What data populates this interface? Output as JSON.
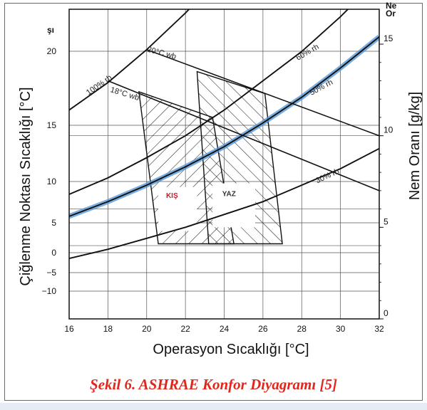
{
  "caption": "Şekil 6. ASHRAE Konfor Diyagramı [5]",
  "colors": {
    "curve_highlight": "#4f93d6",
    "zone_label": "#c0202a",
    "caption": "#e1261c"
  },
  "chart_data": {
    "type": "psychrometric",
    "xlabel": "Operasyon Sıcaklığı [°C]",
    "ylabel_left": "Çiğlenme Noktası Sıcaklığı [°C]",
    "ylabel_right": "Nem Oranı [g/kg]",
    "x_ticks": [
      "16",
      "18",
      "20",
      "22",
      "24",
      "26",
      "28",
      "30",
      "32"
    ],
    "x_range": [
      16,
      32
    ],
    "y_left_ticks": [
      "20",
      "15",
      "10",
      "5",
      "0",
      "−5",
      "−10"
    ],
    "y_right_ticks": [
      "15",
      "10",
      "5",
      "0"
    ],
    "y_right_range": [
      0,
      16
    ],
    "grid": true,
    "header_fragments": {
      "top_left": "şı",
      "top_right_line1": "Ne",
      "top_right_line2": "Or"
    },
    "rh_curves": [
      {
        "label": "100% rh",
        "points": [
          [
            16,
            11.4
          ],
          [
            18,
            12.9
          ],
          [
            20,
            14.7
          ],
          [
            22,
            16.7
          ],
          [
            24,
            18.9
          ],
          [
            26,
            21.4
          ],
          [
            28,
            24.3
          ],
          [
            30,
            27.4
          ],
          [
            32,
            31.0
          ]
        ]
      },
      {
        "label": "60% rh",
        "points": [
          [
            16,
            6.8
          ],
          [
            18,
            7.7
          ],
          [
            20,
            8.8
          ],
          [
            22,
            10.0
          ],
          [
            24,
            11.4
          ],
          [
            26,
            13.0
          ],
          [
            28,
            14.6
          ],
          [
            30,
            16.5
          ],
          [
            32,
            18.6
          ]
        ]
      },
      {
        "label": "50% rh",
        "points": [
          [
            16,
            5.6
          ],
          [
            18,
            6.4
          ],
          [
            20,
            7.3
          ],
          [
            22,
            8.3
          ],
          [
            24,
            9.4
          ],
          [
            26,
            10.7
          ],
          [
            28,
            12.1
          ],
          [
            30,
            13.7
          ],
          [
            32,
            15.4
          ]
        ]
      },
      {
        "label": "30% rh",
        "points": [
          [
            16,
            3.3
          ],
          [
            18,
            3.8
          ],
          [
            20,
            4.4
          ],
          [
            22,
            5.0
          ],
          [
            24,
            5.7
          ],
          [
            26,
            6.4
          ],
          [
            28,
            7.3
          ],
          [
            30,
            8.2
          ],
          [
            32,
            9.3
          ]
        ]
      }
    ],
    "wb_lines": [
      {
        "label": "18°C wb",
        "points": [
          [
            18,
            13.0
          ],
          [
            32,
            7.0
          ]
        ]
      },
      {
        "label": "20°C wb",
        "points": [
          [
            20,
            14.7
          ],
          [
            32,
            10.0
          ]
        ]
      }
    ],
    "zones": [
      {
        "label": "KIŞ",
        "polygon": [
          [
            19.6,
            12.4
          ],
          [
            23.4,
            11.0
          ],
          [
            24.5,
            4.1
          ],
          [
            21.2,
            4.1
          ],
          [
            20.6,
            4.1
          ]
        ]
      },
      {
        "label": "YAZ",
        "polygon": [
          [
            22.6,
            13.5
          ],
          [
            26.1,
            12.3
          ],
          [
            27.0,
            4.1
          ],
          [
            23.2,
            4.1
          ]
        ]
      }
    ]
  }
}
